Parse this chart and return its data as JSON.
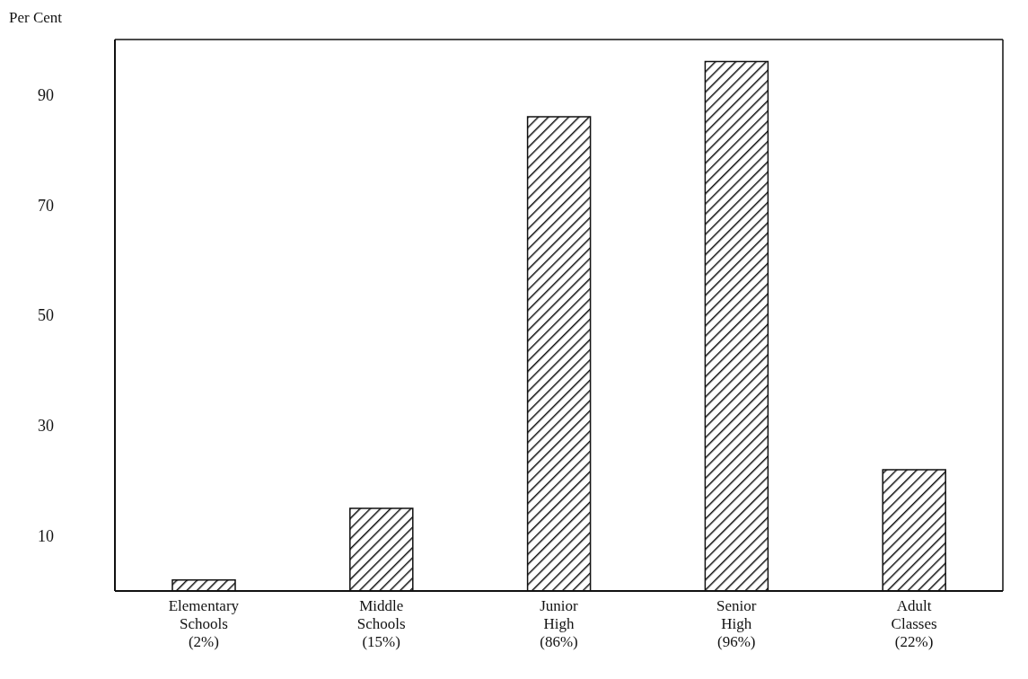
{
  "chart_data": {
    "type": "bar",
    "ylabel": "Per Cent",
    "categories": [
      "Elementary Schools (2%)",
      "Middle Schools (15%)",
      "Junior High (86%)",
      "Senior High (96%)",
      "Adult Classes (22%)"
    ],
    "values": [
      2,
      15,
      86,
      96,
      22
    ],
    "color": "#111111",
    "ylim": [
      0,
      100
    ],
    "yticks": [
      10,
      30,
      50,
      70,
      90
    ],
    "grid": false
  }
}
